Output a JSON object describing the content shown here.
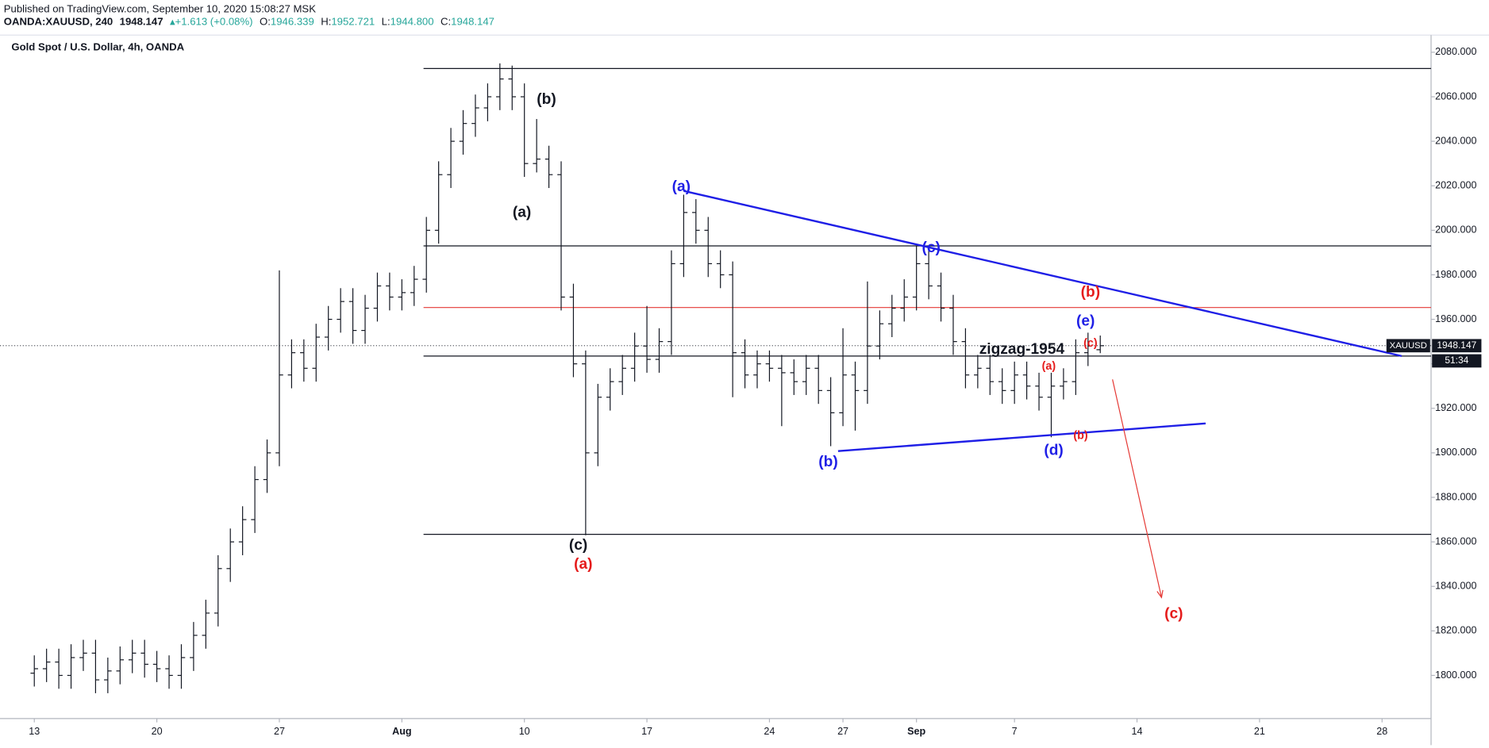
{
  "header": {
    "published": "Published on TradingView.com, September 10, 2020 15:08:27 MSK",
    "symbol": "OANDA:XAUUSD, 240",
    "price": "1948.147",
    "change": "+1.613 (+0.08%)",
    "ohlc": [
      {
        "label": "O:",
        "value": "1946.339"
      },
      {
        "label": "H:",
        "value": "1952.721"
      },
      {
        "label": "L:",
        "value": "1944.800"
      },
      {
        "label": "C:",
        "value": "1948.147"
      }
    ]
  },
  "chart_data": {
    "type": "ohlc",
    "title": "Gold Spot / U.S. Dollar, 4h, OANDA",
    "color": "#131722",
    "x": [
      0,
      0.5,
      1,
      1.5,
      2,
      2.5,
      3,
      3.5,
      4,
      4.5,
      5,
      5.5,
      6,
      6.5,
      7,
      7.5,
      8,
      8.5,
      9,
      9.5,
      10,
      10.5,
      11,
      11.5,
      12,
      12.5,
      13,
      13.5,
      14,
      14.5,
      15,
      15.5,
      16,
      16.5,
      17,
      17.5,
      18,
      18.5,
      19,
      19.5,
      20,
      20.5,
      21,
      21.5,
      22,
      22.5,
      23,
      23.5,
      24,
      24.5,
      25,
      25.5,
      26,
      26.5,
      27,
      27.5,
      28,
      28.5,
      29,
      29.5,
      30,
      30.5,
      31,
      31.5,
      32,
      32.5,
      33,
      33.5,
      34,
      34.5,
      35,
      35.5,
      36,
      36.5,
      37,
      37.5,
      38,
      38.5,
      39,
      39.5,
      40,
      40.5,
      41,
      41.5,
      42,
      42.5,
      43,
      43.5
    ],
    "open": [
      1801,
      1803,
      1806,
      1800,
      1808,
      1810,
      1798,
      1802,
      1807,
      1810,
      1805,
      1803,
      1800,
      1808,
      1818,
      1828,
      1848,
      1860,
      1870,
      1888,
      1900,
      1935,
      1945,
      1938,
      1952,
      1960,
      1968,
      1955,
      1965,
      1975,
      1970,
      1972,
      1978,
      2000,
      2025,
      2040,
      2048,
      2055,
      2060,
      2068,
      2060,
      2030,
      2032,
      2025,
      1970,
      1940,
      1900,
      1925,
      1932,
      1938,
      1948,
      1942,
      1950,
      1985,
      2008,
      2000,
      1985,
      1980,
      1945,
      1935,
      1940,
      1938,
      1936,
      1932,
      1938,
      1928,
      1918,
      1935,
      1928,
      1948,
      1958,
      1965,
      1970,
      1985,
      1975,
      1965,
      1950,
      1935,
      1938,
      1932,
      1928,
      1935,
      1930,
      1925,
      1930,
      1932,
      1945,
      1946.339
    ],
    "high": [
      1809,
      1812,
      1812,
      1814,
      1816,
      1816,
      1808,
      1813,
      1816,
      1816,
      1811,
      1809,
      1814,
      1824,
      1834,
      1854,
      1866,
      1876,
      1894,
      1906,
      1982,
      1951,
      1951,
      1958,
      1966,
      1974,
      1974,
      1971,
      1981,
      1981,
      1978,
      1984,
      2006,
      2031,
      2046,
      2054,
      2061,
      2066,
      2075,
      2074,
      2066,
      2050,
      2038,
      2031,
      1976,
      1946,
      1931,
      1938,
      1944,
      1954,
      1966,
      1956,
      1991,
      2016,
      2014,
      2006,
      1991,
      1986,
      1951,
      1946,
      1946,
      1944,
      1942,
      1944,
      1944,
      1934,
      1956,
      1941,
      1977,
      1964,
      1971,
      1978,
      1993,
      1991,
      1981,
      1971,
      1956,
      1944,
      1944,
      1938,
      1941,
      1941,
      1936,
      1936,
      1938,
      1951,
      1954,
      1952.721
    ],
    "low": [
      1795,
      1797,
      1794,
      1794,
      1802,
      1792,
      1792,
      1796,
      1801,
      1799,
      1797,
      1794,
      1794,
      1802,
      1812,
      1822,
      1842,
      1854,
      1864,
      1882,
      1894,
      1929,
      1932,
      1932,
      1946,
      1954,
      1949,
      1949,
      1959,
      1964,
      1964,
      1966,
      1972,
      1994,
      2019,
      2034,
      2042,
      2049,
      2054,
      2054,
      2024,
      2026,
      2019,
      1964,
      1934,
      1863,
      1894,
      1919,
      1926,
      1932,
      1936,
      1936,
      1944,
      1979,
      1994,
      1979,
      1974,
      1925,
      1929,
      1929,
      1932,
      1912,
      1926,
      1926,
      1922,
      1903,
      1912,
      1910,
      1922,
      1942,
      1952,
      1959,
      1964,
      1969,
      1959,
      1944,
      1929,
      1929,
      1926,
      1922,
      1922,
      1924,
      1919,
      1907,
      1924,
      1926,
      1939,
      1944.8
    ],
    "close": [
      1803,
      1806,
      1800,
      1808,
      1810,
      1798,
      1802,
      1807,
      1810,
      1805,
      1803,
      1800,
      1808,
      1818,
      1828,
      1848,
      1860,
      1870,
      1888,
      1900,
      1935,
      1945,
      1938,
      1952,
      1960,
      1968,
      1955,
      1965,
      1975,
      1970,
      1972,
      1978,
      2000,
      2025,
      2040,
      2048,
      2055,
      2060,
      2068,
      2060,
      2030,
      2032,
      2025,
      1970,
      1940,
      1900,
      1925,
      1932,
      1938,
      1948,
      1942,
      1950,
      1985,
      2008,
      2000,
      1985,
      1980,
      1945,
      1935,
      1940,
      1938,
      1936,
      1932,
      1938,
      1928,
      1918,
      1935,
      1928,
      1948,
      1958,
      1965,
      1970,
      1985,
      1975,
      1965,
      1950,
      1935,
      1938,
      1932,
      1928,
      1935,
      1930,
      1925,
      1930,
      1932,
      1945,
      1948,
      1948.147
    ],
    "xlim": [
      -1.4,
      57
    ],
    "xticks": [
      {
        "value": 0,
        "label": "13"
      },
      {
        "value": 5,
        "label": "20"
      },
      {
        "value": 10,
        "label": "27"
      },
      {
        "value": 15,
        "label": "Aug"
      },
      {
        "value": 20,
        "label": "10"
      },
      {
        "value": 25,
        "label": "17"
      },
      {
        "value": 30,
        "label": "24"
      },
      {
        "value": 33,
        "label": "27"
      },
      {
        "value": 36,
        "label": "Sep"
      },
      {
        "value": 40,
        "label": "7"
      },
      {
        "value": 45,
        "label": "14"
      },
      {
        "value": 50,
        "label": "21"
      },
      {
        "value": 55,
        "label": "28"
      }
    ],
    "ylim": [
      1780.6,
      2087.7
    ],
    "yticks": [
      {
        "value": 1800,
        "label": "1800.000"
      },
      {
        "value": 1820,
        "label": "1820.000"
      },
      {
        "value": 1840,
        "label": "1840.000"
      },
      {
        "value": 1860,
        "label": "1860.000"
      },
      {
        "value": 1880,
        "label": "1880.000"
      },
      {
        "value": 1900,
        "label": "1900.000"
      },
      {
        "value": 1920,
        "label": "1920.000"
      },
      {
        "value": 1940,
        "label": "1940.000"
      },
      {
        "value": 1960,
        "label": "1960.000"
      },
      {
        "value": 1980,
        "label": "1980.000"
      },
      {
        "value": 2000,
        "label": "2000.000"
      },
      {
        "value": 2020,
        "label": "2020.000"
      },
      {
        "value": 2040,
        "label": "2040.000"
      },
      {
        "value": 2060,
        "label": "2060.000"
      },
      {
        "value": 2080,
        "label": "2080.000"
      }
    ],
    "levels": [
      {
        "value": 2072.7,
        "color": "#131722"
      },
      {
        "value": 1993,
        "color": "#131722"
      },
      {
        "value": 1965.3,
        "color": "#e53935"
      },
      {
        "value": 1943.5,
        "color": "#131722"
      },
      {
        "value": 1863.4,
        "color": "#131722"
      }
    ],
    "trendlines": [
      {
        "x": [
          26.5,
          55.8
        ],
        "y": [
          2017.7,
          1943.5
        ],
        "color": "#1f1fe6"
      },
      {
        "x": [
          32.8,
          47.8
        ],
        "y": [
          1900.8,
          1913.2
        ],
        "color": "#1f1fe6"
      },
      {
        "x": [
          44.0,
          46.0
        ],
        "y": [
          1933,
          1835
        ],
        "color": "#e53935",
        "arrow": true
      }
    ],
    "annotations": [
      {
        "text": "(b)",
        "color": "#131722"
      },
      {
        "text": "(a)",
        "color": "#131722"
      },
      {
        "text": "(c)",
        "color": "#131722"
      },
      {
        "text": "(a)",
        "color": "#e51c1c"
      },
      {
        "text": "(a)",
        "color": "#1f1fe6"
      },
      {
        "text": "(c)",
        "color": "#1f1fe6"
      },
      {
        "text": "(b)",
        "color": "#e51c1c"
      },
      {
        "text": "(e)",
        "color": "#1f1fe6"
      },
      {
        "text": "zigzag-1954",
        "color": "#131722"
      },
      {
        "text": "(a)",
        "color": "#e51c1c"
      },
      {
        "text": "(c)",
        "color": "#e51c1c"
      },
      {
        "text": "(b)",
        "color": "#e51c1c"
      },
      {
        "text": "(b)",
        "color": "#1f1fe6"
      },
      {
        "text": "(d)",
        "color": "#1f1fe6"
      },
      {
        "text": "(c)",
        "color": "#e51c1c"
      }
    ],
    "last_price_label": "XAUUSD",
    "countdown": "51:34"
  }
}
